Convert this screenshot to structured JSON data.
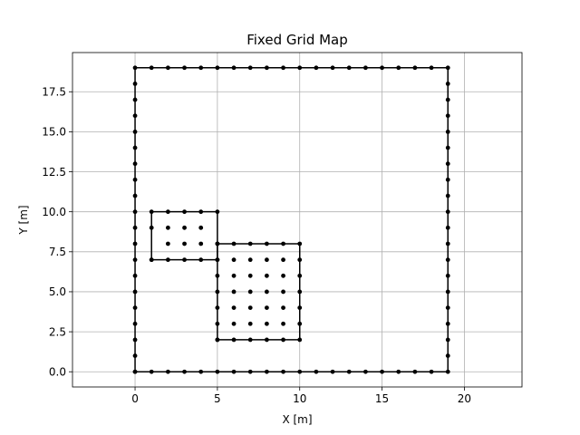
{
  "chart_data": {
    "type": "scatter",
    "title": "Fixed Grid Map",
    "xlabel": "X [m]",
    "ylabel": "Y [m]",
    "xlim": [
      -3.8,
      23.5
    ],
    "ylim": [
      -0.95,
      19.95
    ],
    "xticks": [
      0,
      5,
      10,
      15,
      20
    ],
    "xtick_labels": [
      "0",
      "5",
      "10",
      "15",
      "20"
    ],
    "yticks": [
      0,
      2.5,
      5,
      7.5,
      10,
      12.5,
      15,
      17.5
    ],
    "ytick_labels": [
      "0.0",
      "2.5",
      "5.0",
      "7.5",
      "10.0",
      "12.5",
      "15.0",
      "17.5"
    ],
    "grid": true,
    "series": [
      {
        "kind": "line-with-markers",
        "color": "#000000",
        "x": [
          0,
          1,
          2,
          3,
          4,
          5,
          6,
          7,
          8,
          9,
          10,
          11,
          12,
          13,
          14,
          15,
          16,
          17,
          18,
          19,
          19,
          19,
          19,
          19,
          19,
          19,
          19,
          19,
          19,
          19,
          19,
          19,
          19,
          19,
          19,
          19,
          19,
          19,
          19,
          18,
          17,
          16,
          15,
          14,
          13,
          12,
          11,
          10,
          9,
          8,
          7,
          6,
          5,
          4,
          3,
          2,
          1,
          0,
          0,
          0,
          0,
          0,
          0,
          0,
          0,
          0,
          0,
          0,
          0,
          0,
          0,
          0,
          0,
          0,
          0,
          0,
          0
        ],
        "y": [
          0,
          0,
          0,
          0,
          0,
          0,
          0,
          0,
          0,
          0,
          0,
          0,
          0,
          0,
          0,
          0,
          0,
          0,
          0,
          0,
          1,
          2,
          3,
          4,
          5,
          6,
          7,
          8,
          9,
          10,
          11,
          12,
          13,
          14,
          15,
          16,
          17,
          18,
          19,
          19,
          19,
          19,
          19,
          19,
          19,
          19,
          19,
          19,
          19,
          19,
          19,
          19,
          19,
          19,
          19,
          19,
          19,
          19,
          18,
          17,
          16,
          15,
          14,
          13,
          12,
          11,
          10,
          9,
          8,
          7,
          6,
          5,
          4,
          3,
          2,
          1,
          0
        ]
      },
      {
        "kind": "line-with-markers",
        "color": "#000000",
        "x": [
          1,
          2,
          3,
          4,
          5,
          5,
          5,
          4,
          3,
          2,
          1,
          1,
          1
        ],
        "y": [
          7,
          7,
          7,
          7,
          7,
          8,
          10,
          10,
          10,
          10,
          10,
          9,
          7
        ]
      },
      {
        "kind": "line-with-markers",
        "color": "#000000",
        "x": [
          5,
          6,
          7,
          8,
          9,
          10,
          10,
          10,
          10,
          10,
          10,
          10,
          9,
          8,
          7,
          6,
          5,
          5,
          5,
          5,
          5,
          5,
          5
        ],
        "y": [
          2,
          2,
          2,
          2,
          2,
          2,
          3,
          4,
          5,
          6,
          7,
          8,
          8,
          8,
          8,
          8,
          8,
          7,
          6,
          5,
          4,
          3,
          2
        ]
      },
      {
        "kind": "markers",
        "color": "#000000",
        "x": [
          2,
          3,
          4,
          2,
          3,
          4,
          6,
          7,
          8,
          9,
          6,
          7,
          8,
          9,
          6,
          7,
          8,
          9,
          6,
          7,
          8,
          9,
          6,
          7,
          8,
          9
        ],
        "y": [
          9,
          9,
          9,
          8,
          8,
          8,
          7,
          7,
          7,
          7,
          6,
          6,
          6,
          6,
          5,
          5,
          5,
          5,
          4,
          4,
          4,
          4,
          3,
          3,
          3,
          3
        ]
      }
    ]
  }
}
